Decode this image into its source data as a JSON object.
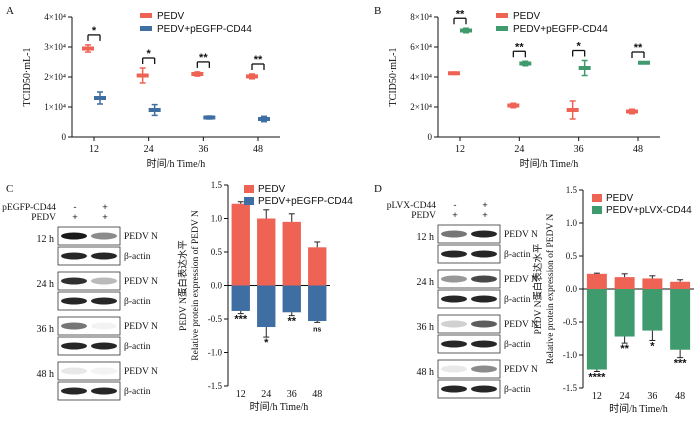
{
  "panels": {
    "A": {
      "letter": "A"
    },
    "B": {
      "letter": "B"
    },
    "C": {
      "letter": "C"
    },
    "D": {
      "letter": "D"
    }
  },
  "blots": {
    "C": {
      "header_rows": [
        {
          "label": "pEGFP-CD44",
          "marks": [
            "-",
            "+"
          ]
        },
        {
          "label": "PEDV",
          "marks": [
            "+",
            "+"
          ]
        }
      ],
      "times": [
        "12 h",
        "24 h",
        "36 h",
        "48 h"
      ],
      "band_labels": [
        "PEDV N",
        "β-actin"
      ]
    },
    "D": {
      "header_rows": [
        {
          "label": "pLVX-CD44",
          "marks": [
            "-",
            "+"
          ]
        },
        {
          "label": "PEDV",
          "marks": [
            "+",
            "+"
          ]
        }
      ],
      "times": [
        "12 h",
        "24 h",
        "36 h",
        "48 h"
      ],
      "band_labels": [
        "PEDV N",
        "β-actin"
      ]
    }
  },
  "colors": {
    "control": "#ef6355",
    "blue": "#3f6ea3",
    "green": "#3f9b6e"
  },
  "chart_data": [
    {
      "id": "A",
      "type": "scatter",
      "xlabel": "时间/h  Time/h",
      "ylabel": "TCID50·mL-1",
      "categories": [
        "12",
        "24",
        "36",
        "48"
      ],
      "yticks": [
        "0",
        "1×10⁴",
        "2×10⁴",
        "3×10⁴",
        "4×10⁴"
      ],
      "ylim": [
        0,
        40000
      ],
      "series": [
        {
          "name": "PEDV",
          "color": "#ef6355",
          "values": [
            29500,
            20500,
            21000,
            20200
          ],
          "err": [
            1200,
            2500,
            700,
            800
          ]
        },
        {
          "name": "PEDV+pEGFP-CD44",
          "color": "#3f6ea3",
          "values": [
            13000,
            9000,
            6500,
            6000
          ],
          "err": [
            2000,
            1800,
            500,
            900
          ]
        }
      ],
      "significance": [
        "*",
        "*",
        "**",
        "**"
      ],
      "legend": "top-right"
    },
    {
      "id": "B",
      "type": "scatter",
      "xlabel": "时间/h  Time/h",
      "ylabel": "TCID50·mL-1",
      "categories": [
        "12",
        "24",
        "36",
        "48"
      ],
      "yticks": [
        "0",
        "2×10⁴",
        "4×10⁴",
        "6×10⁴",
        "8×10⁴"
      ],
      "ylim": [
        0,
        80000
      ],
      "series": [
        {
          "name": "PEDV",
          "color": "#ef6355",
          "values": [
            42500,
            21000,
            18000,
            17000
          ],
          "err": [
            800,
            1500,
            6000,
            1500
          ]
        },
        {
          "name": "PEDV+pEGFP-CD44",
          "color": "#3f9b6e",
          "values": [
            71000,
            49000,
            46000,
            49500
          ],
          "err": [
            1500,
            1500,
            5000,
            500
          ]
        }
      ],
      "significance": [
        "**",
        "**",
        "*",
        "**"
      ],
      "legend": "top-right"
    },
    {
      "id": "C",
      "type": "bar",
      "xlabel": "时间/h  Time/h",
      "ylabel": "PEDV N蛋白表达水平",
      "ylabel2": "Relative protein expression of PEDV N",
      "categories": [
        "12",
        "24",
        "36",
        "48"
      ],
      "yticks": [
        "-1.5",
        "-1.0",
        "-0.5",
        "0.0",
        "0.5",
        "1.0",
        "1.5"
      ],
      "ylim": [
        -1.5,
        1.5
      ],
      "series": [
        {
          "name": "PEDV",
          "color": "#ef6355",
          "values": [
            1.22,
            1.0,
            0.95,
            0.57
          ],
          "err": [
            0.03,
            0.13,
            0.12,
            0.08
          ]
        },
        {
          "name": "PEDV+pEGFP-CD44",
          "color": "#3f6ea3",
          "values": [
            -0.38,
            -0.62,
            -0.4,
            -0.53
          ],
          "err": [
            0.04,
            0.15,
            0.05,
            0.02
          ]
        }
      ],
      "significance": [
        "***",
        "*",
        "**",
        "ns"
      ],
      "legend": "top-right"
    },
    {
      "id": "D",
      "type": "bar",
      "xlabel": "时间/h  Time/h",
      "ylabel": "PEDV N蛋白表达水平",
      "ylabel2": "Relative protein expression of PEDV N",
      "categories": [
        "12",
        "24",
        "36",
        "48"
      ],
      "yticks": [
        "-1.5",
        "-1.0",
        "-0.5",
        "0.0",
        "0.5",
        "1.0",
        "1.5"
      ],
      "ylim": [
        -1.5,
        1.5
      ],
      "series": [
        {
          "name": "PEDV",
          "color": "#ef6355",
          "values": [
            0.23,
            0.18,
            0.16,
            0.11
          ],
          "err": [
            0.01,
            0.05,
            0.04,
            0.03
          ]
        },
        {
          "name": "PEDV+pLVX-CD44",
          "color": "#3f9b6e",
          "values": [
            -1.22,
            -0.72,
            -0.63,
            -0.92
          ],
          "err": [
            0.03,
            0.1,
            0.15,
            0.12
          ]
        }
      ],
      "significance": [
        "****",
        "**",
        "*",
        "***"
      ],
      "legend": "top-right"
    }
  ]
}
